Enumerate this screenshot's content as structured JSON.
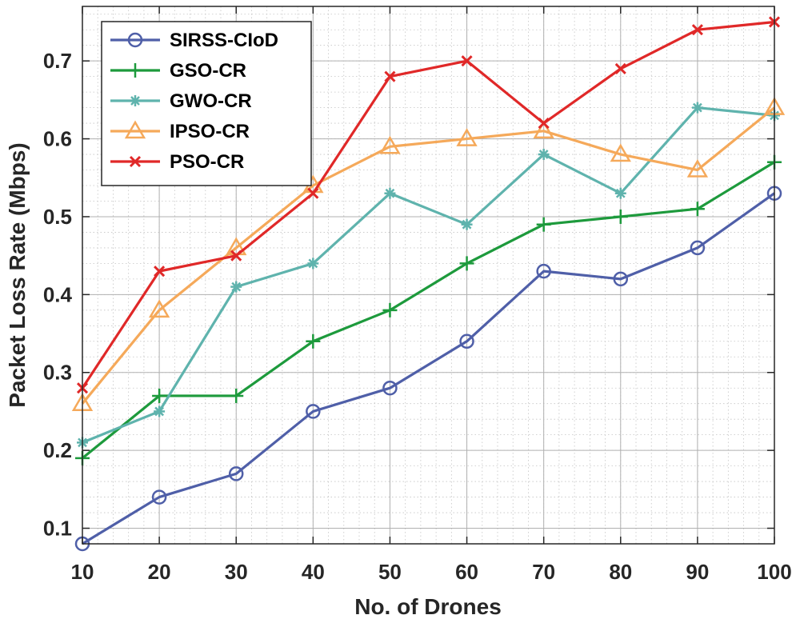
{
  "chart_data": {
    "type": "line",
    "xlabel": "No. of Drones",
    "ylabel": "Packet Loss Rate (Mbps)",
    "x": [
      10,
      20,
      30,
      40,
      50,
      60,
      70,
      80,
      90,
      100
    ],
    "xlim": [
      10,
      100
    ],
    "ylim": [
      0.08,
      0.77
    ],
    "xticks": [
      10,
      20,
      30,
      40,
      50,
      60,
      70,
      80,
      90,
      100
    ],
    "yticks": [
      0.1,
      0.2,
      0.3,
      0.4,
      0.5,
      0.6,
      0.7
    ],
    "ytick_labels": [
      "0.1",
      "0.2",
      "0.3",
      "0.4",
      "0.5",
      "0.6",
      "0.7"
    ],
    "grid": true,
    "minor_grid": true,
    "legend_position": "top-left",
    "series": [
      {
        "name": "SIRSS-CIoD",
        "color": "#4f5fa8",
        "marker": "circle",
        "values": [
          0.08,
          0.14,
          0.17,
          0.25,
          0.28,
          0.34,
          0.43,
          0.42,
          0.46,
          0.53
        ]
      },
      {
        "name": "GSO-CR",
        "color": "#1d9a3c",
        "marker": "plus",
        "values": [
          0.19,
          0.27,
          0.27,
          0.34,
          0.38,
          0.44,
          0.49,
          0.5,
          0.51,
          0.57
        ]
      },
      {
        "name": "GWO-CR",
        "color": "#5fb3ad",
        "marker": "asterisk",
        "values": [
          0.21,
          0.25,
          0.41,
          0.44,
          0.53,
          0.49,
          0.58,
          0.53,
          0.64,
          0.63
        ]
      },
      {
        "name": "IPSO-CR",
        "color": "#f5a95a",
        "marker": "triangle",
        "values": [
          0.26,
          0.38,
          0.46,
          0.54,
          0.59,
          0.6,
          0.61,
          0.58,
          0.56,
          0.64
        ]
      },
      {
        "name": "PSO-CR",
        "color": "#e02828",
        "marker": "x",
        "values": [
          0.28,
          0.43,
          0.45,
          0.53,
          0.68,
          0.7,
          0.62,
          0.69,
          0.74,
          0.75
        ]
      }
    ]
  }
}
